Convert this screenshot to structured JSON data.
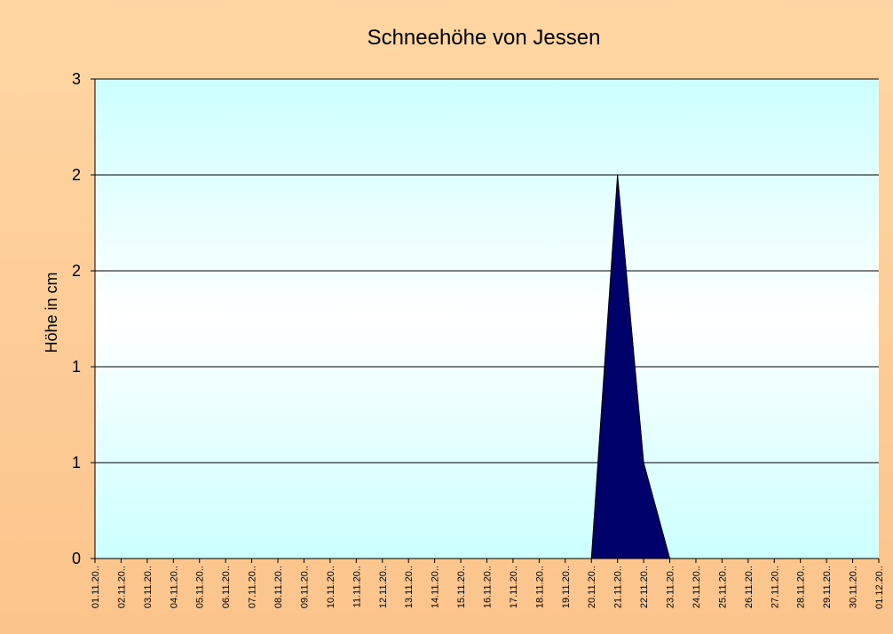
{
  "chart_data": {
    "type": "area",
    "title": "Schneehöhe von Jessen",
    "ylabel": "Höhe in cm",
    "xlabel": "",
    "ylim": [
      0,
      2.5
    ],
    "y_ticks": [
      {
        "value": 0,
        "label": "0"
      },
      {
        "value": 0.5,
        "label": "1"
      },
      {
        "value": 1.0,
        "label": "1"
      },
      {
        "value": 1.5,
        "label": "2"
      },
      {
        "value": 2.0,
        "label": "2"
      },
      {
        "value": 2.5,
        "label": "3"
      }
    ],
    "categories": [
      "01.11.20..",
      "02.11.20..",
      "03.11.20..",
      "04.11.20..",
      "05.11.20..",
      "06.11.20..",
      "07.11.20..",
      "08.11.20..",
      "09.11.20..",
      "10.11.20..",
      "11.11.20..",
      "12.11.20..",
      "13.11.20..",
      "14.11.20..",
      "15.11.20..",
      "16.11.20..",
      "17.11.20..",
      "18.11.20..",
      "19.11.20..",
      "20.11.20..",
      "21.11.20..",
      "22.11.20..",
      "23.11.20..",
      "24.11.20..",
      "25.11.20..",
      "26.11.20..",
      "27.11.20..",
      "28.11.20..",
      "29.11.20..",
      "30.11.20..",
      "01.12.20.."
    ],
    "series": [
      {
        "values": [
          0,
          0,
          0,
          0,
          0,
          0,
          0,
          0,
          0,
          0,
          0,
          0,
          0,
          0,
          0,
          0,
          0,
          0,
          0,
          0,
          2,
          0.5,
          0,
          0,
          0,
          0,
          0,
          0,
          0,
          0,
          0
        ]
      }
    ],
    "grid": true,
    "legend": "none"
  },
  "colors": {
    "area_fill": "#00006b",
    "area_stroke": "#000000",
    "plot_bg_top": "#ccffff",
    "plot_bg_mid": "#ffffff",
    "grid": "#000000"
  }
}
